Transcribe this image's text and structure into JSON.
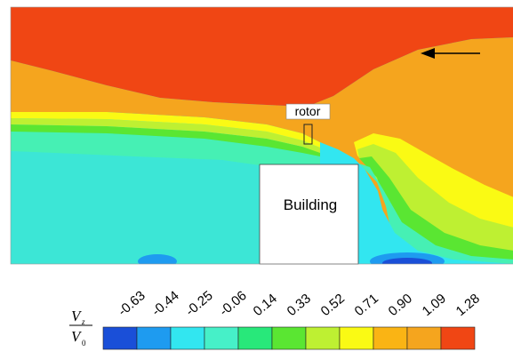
{
  "labels": {
    "rotor": "rotor",
    "building": "Building"
  },
  "legend": {
    "numerator": "V",
    "numerator_sub": "z",
    "denominator": "V",
    "denominator_sub": "0",
    "ticks": [
      "-0.63",
      "-0.44",
      "-0.25",
      "-0.06",
      "0.14",
      "0.33",
      "0.52",
      "0.71",
      "0.90",
      "1.09",
      "1.28"
    ],
    "colors": [
      "#1a4fd8",
      "#1e9bf0",
      "#32e6f0",
      "#46f0c8",
      "#28e87a",
      "#5ae632",
      "#bef032",
      "#fafa14",
      "#fab414",
      "#f5a51e",
      "#f04614"
    ]
  },
  "colors": {
    "contour_red": "#f04614",
    "contour_orange": "#f5a51e",
    "contour_yellow": "#fafa14",
    "contour_lime": "#bef032",
    "contour_green": "#5ae632",
    "contour_cyan": "#32e6f0",
    "contour_blue": "#1e9bf0"
  },
  "icons": {
    "flow_direction": "arrow-left-icon"
  }
}
